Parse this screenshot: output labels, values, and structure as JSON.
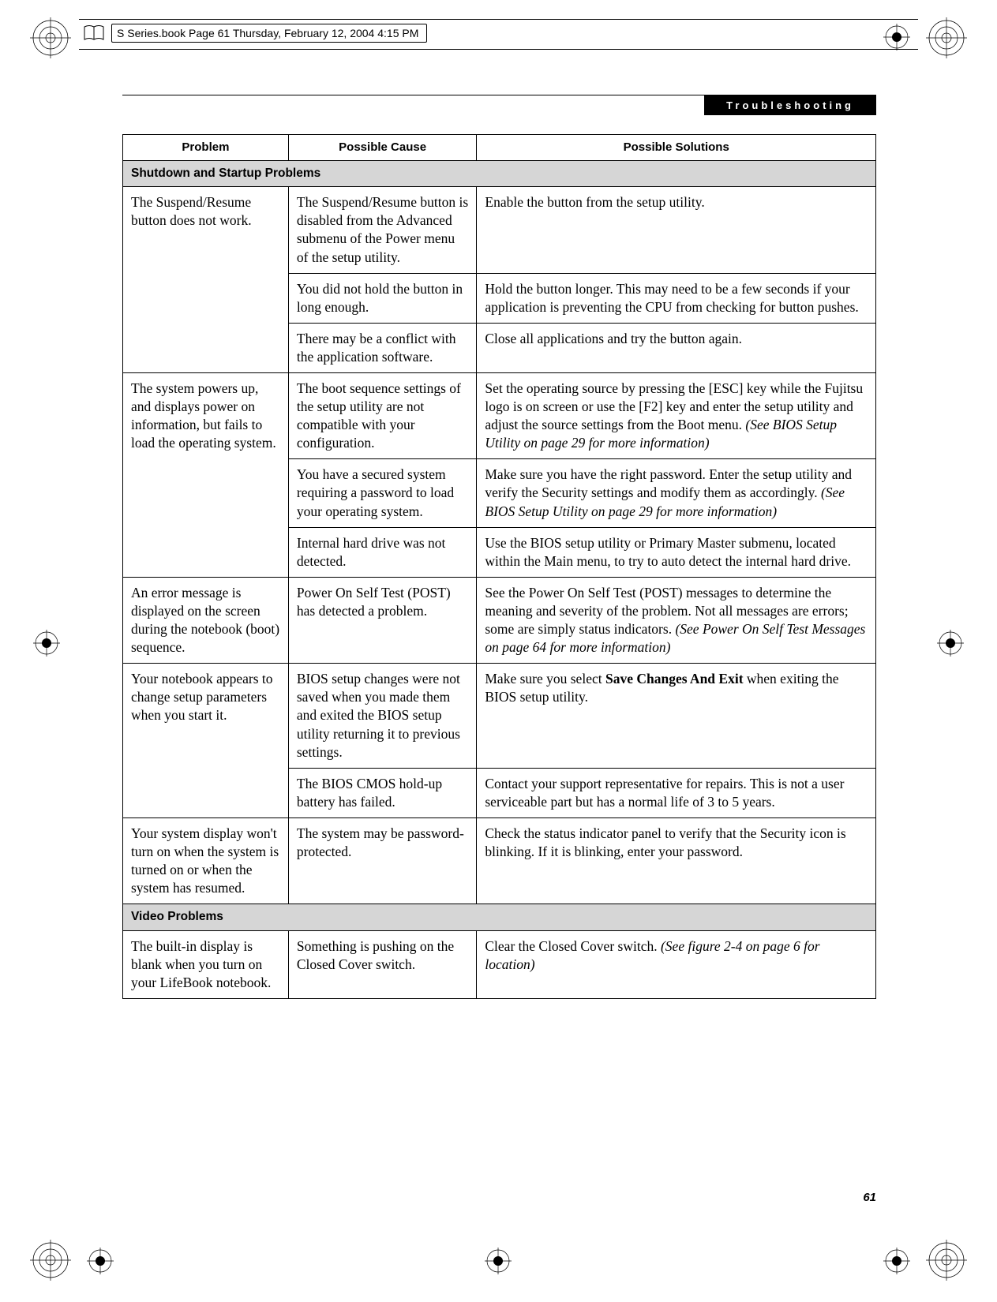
{
  "header": {
    "text": "S Series.book  Page 61  Thursday, February 12, 2004  4:15 PM"
  },
  "section_tab": "Troubleshooting",
  "table": {
    "headers": [
      "Problem",
      "Possible Cause",
      "Possible Solutions"
    ],
    "groups": [
      {
        "title": "Shutdown and Startup Problems",
        "rows": [
          {
            "problem": "The Suspend/Resume button does not work.",
            "problem_rowspan": 3,
            "cause": "The Suspend/Resume button is disabled from the Advanced submenu of the Power menu of the setup utility.",
            "solution": "Enable the button from the setup utility."
          },
          {
            "cause": "You did not hold the button in long enough.",
            "solution": "Hold the button longer. This may need to be a few seconds if your application is preventing the CPU from checking for button pushes."
          },
          {
            "cause": "There may be a conflict with the application software.",
            "solution": "Close all applications and try the button again."
          },
          {
            "problem": "The system powers up, and displays power on information, but fails to load the operating system.",
            "problem_rowspan": 3,
            "cause": "The boot sequence settings of the setup utility are not compatible with your configuration.",
            "solution_html": "Set the operating source by pressing the [ESC] key while the Fujitsu logo is on screen or use the [F2] key and enter the setup utility and adjust the source settings from the Boot menu. <span class=\"italic\">(See BIOS Setup Utility on page 29 for more information)</span>"
          },
          {
            "cause": "You have a secured system requiring a password to load your operating system.",
            "solution_html": "Make sure you have the right password. Enter the setup utility and verify the Security settings and modify them as accordingly. <span class=\"italic\">(See BIOS Setup Utility on page 29 for more information)</span>"
          },
          {
            "cause": "Internal hard drive was not detected.",
            "solution": "Use the BIOS setup utility or Primary Master submenu, located within the Main menu, to try to auto detect the internal hard drive."
          },
          {
            "problem": "An error message is displayed on the screen during the notebook (boot) sequence.",
            "problem_rowspan": 1,
            "cause": "Power On Self Test (POST) has detected a problem.",
            "solution_html": "See the Power On Self Test (POST) messages to determine the meaning and severity of the problem. Not all messages are errors; some are simply status indicators. <span class=\"italic\">(See Power On Self Test Messages on page 64 for more information)</span>"
          },
          {
            "problem": "Your notebook appears to change setup parameters when you start it.",
            "problem_rowspan": 2,
            "cause": "BIOS setup changes were not saved when you made them and exited the BIOS setup utility returning it to previous settings.",
            "solution_html": "Make sure you select <span class=\"bold\">Save Changes And Exit</span> when exiting the BIOS setup utility."
          },
          {
            "cause": "The BIOS CMOS hold-up battery has failed.",
            "solution": "Contact your support representative for repairs. This is not a user serviceable part but has a normal life of 3 to 5 years."
          },
          {
            "problem": "Your system display won't turn on when the system is turned on or when the system has resumed.",
            "problem_rowspan": 1,
            "cause": "The system may be password-protected.",
            "solution": "Check the status indicator panel to verify that the Security icon is blinking. If it is blinking, enter your password."
          }
        ]
      },
      {
        "title": "Video Problems",
        "rows": [
          {
            "problem": "The built-in display is blank when you turn on your LifeBook notebook.",
            "problem_rowspan": 1,
            "cause": "Something is pushing on the Closed Cover switch.",
            "solution_html": "Clear the Closed Cover switch. <span class=\"italic\">(See figure 2-4 on page 6 for location)</span>"
          }
        ]
      }
    ]
  },
  "page_number": "61",
  "colors": {
    "page_bg": "#ffffff",
    "text": "#000000",
    "section_row_bg": "#d6d6d6",
    "tab_bg": "#000000",
    "tab_text": "#ffffff",
    "border": "#000000"
  }
}
